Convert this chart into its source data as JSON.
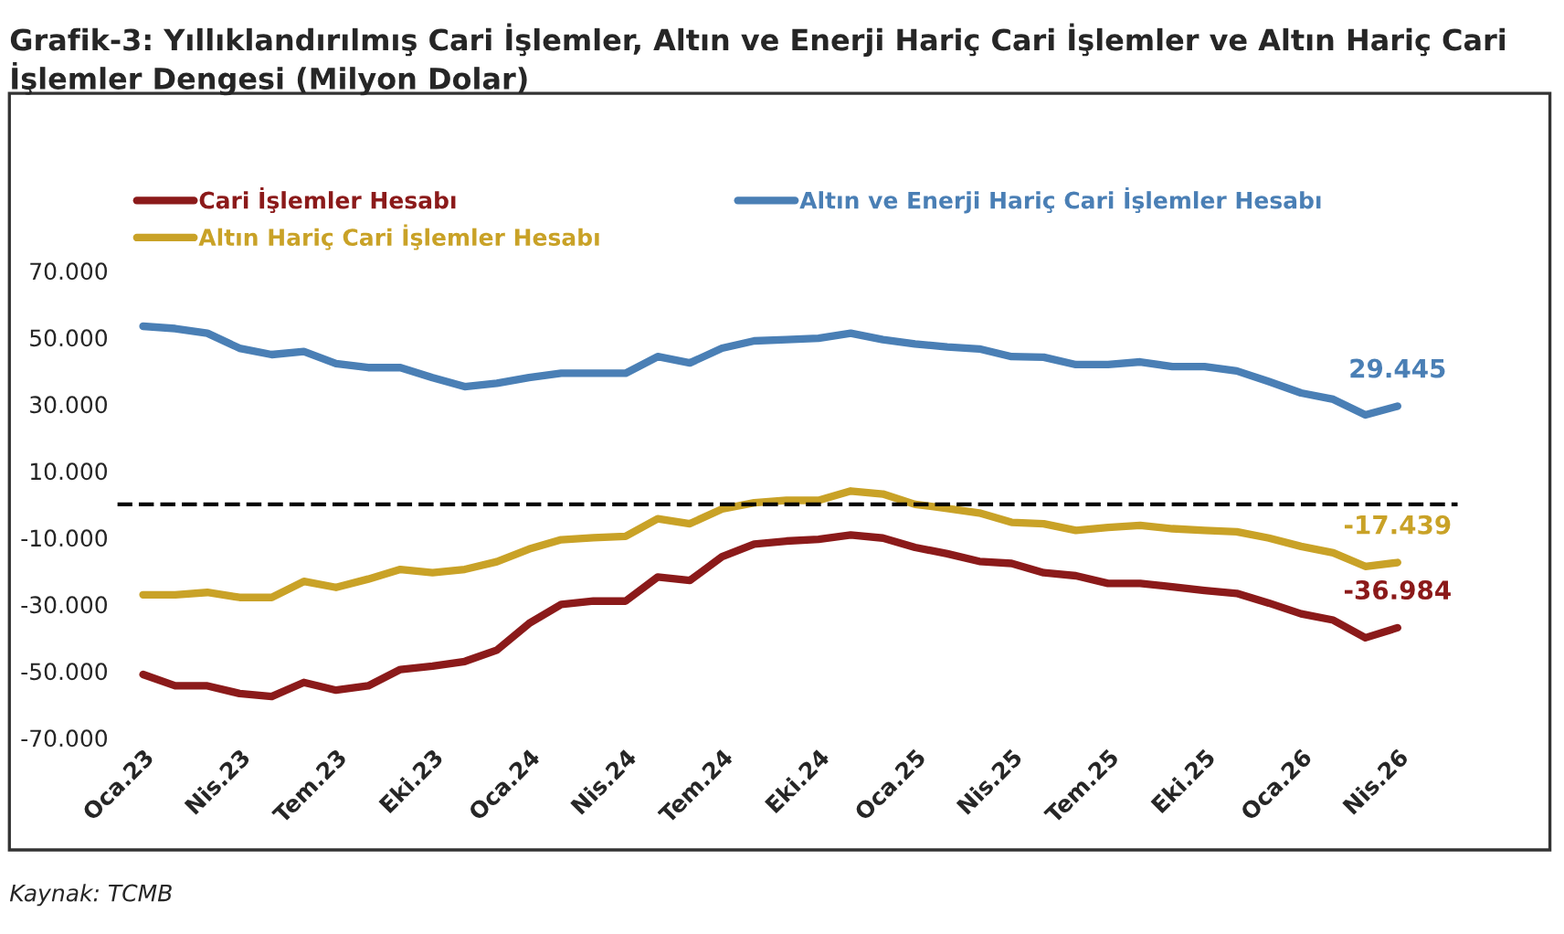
{
  "chart_data": {
    "type": "line",
    "title": "Grafik-3: Yıllıklandırılmış Cari İşlemler, Altın ve Enerji Hariç Cari İşlemler ve Altın Hariç Cari İşlemler Dengesi (Milyon Dolar)",
    "categories": [
      "Oca.23",
      null,
      null,
      "Nis.23",
      null,
      null,
      "Tem.23",
      null,
      null,
      "Eki.23",
      null,
      null,
      "Oca.24",
      null,
      null,
      "Nis.24",
      null,
      null,
      "Tem.24",
      null,
      null,
      "Eki.24",
      null,
      null,
      "Oca.25",
      null,
      null,
      "Nis.25",
      null,
      null,
      "Tem.25",
      null,
      null,
      "Eki.25",
      null,
      null,
      "Oca.26",
      null,
      null,
      "Nis.26"
    ],
    "series": [
      {
        "name": "Cari İşlemler Hesabı",
        "color": "#8b1a1a",
        "values": [
          -51000,
          -54400,
          -54400,
          -56700,
          -57600,
          -53400,
          -55700,
          -54400,
          -49500,
          -48500,
          -47100,
          -43700,
          -35700,
          -30000,
          -29000,
          -29000,
          -21800,
          -22800,
          -15700,
          -11900,
          -11000,
          -10500,
          -9200,
          -10100,
          -12900,
          -14800,
          -17100,
          -17700,
          -20500,
          -21400,
          -23700,
          -23700,
          -24700,
          -25800,
          -26700,
          -29600,
          -32800,
          -34700,
          -40000,
          -36984
        ],
        "value_labels": [
          null,
          null,
          null,
          null,
          null,
          null,
          null,
          null,
          null,
          null,
          null,
          null,
          null,
          null,
          null,
          null,
          null,
          null,
          null,
          null,
          null,
          null,
          null,
          null,
          null,
          null,
          null,
          null,
          null,
          null,
          null,
          null,
          null,
          null,
          null,
          null,
          null,
          null,
          null,
          "-36.984"
        ]
      },
      {
        "name": "Altın ve Enerji Hariç Cari İşlemler Hesabı",
        "color": "#4a7fb5",
        "values": [
          53400,
          52700,
          51300,
          46800,
          44900,
          45800,
          42200,
          41000,
          41000,
          38000,
          35300,
          36300,
          38000,
          39300,
          39300,
          39300,
          44300,
          42400,
          46800,
          49000,
          49400,
          49800,
          51300,
          49400,
          48100,
          47200,
          46600,
          44300,
          44100,
          41900,
          41900,
          42700,
          41300,
          41300,
          40000,
          36800,
          33400,
          31500,
          26800,
          29445
        ],
        "value_labels": [
          null,
          null,
          null,
          null,
          null,
          null,
          null,
          null,
          null,
          null,
          null,
          null,
          null,
          null,
          null,
          null,
          null,
          null,
          null,
          null,
          null,
          null,
          null,
          null,
          null,
          null,
          null,
          null,
          null,
          null,
          null,
          null,
          null,
          null,
          null,
          null,
          null,
          null,
          null,
          "29.445"
        ]
      },
      {
        "name": "Altın Hariç Cari İşlemler Hesabı",
        "color": "#c9a227",
        "values": [
          -27100,
          -27100,
          -26400,
          -27900,
          -27900,
          -23100,
          -24900,
          -22400,
          -19500,
          -20500,
          -19500,
          -17200,
          -13400,
          -10600,
          -10000,
          -9600,
          -4300,
          -5800,
          -1400,
          500,
          1200,
          1200,
          4000,
          3100,
          0,
          -1200,
          -2600,
          -5400,
          -5800,
          -7800,
          -6900,
          -6300,
          -7300,
          -7800,
          -8200,
          -10100,
          -12600,
          -14500,
          -18600,
          -17439
        ],
        "value_labels": [
          null,
          null,
          null,
          null,
          null,
          null,
          null,
          null,
          null,
          null,
          null,
          null,
          null,
          null,
          null,
          null,
          null,
          null,
          null,
          null,
          null,
          null,
          null,
          null,
          null,
          null,
          null,
          null,
          null,
          null,
          null,
          null,
          null,
          null,
          null,
          null,
          null,
          null,
          null,
          "-17.439"
        ]
      }
    ],
    "ylim": [
      -70000,
      70000
    ],
    "yticks": [
      {
        "value": -70000,
        "label": "-70.000"
      },
      {
        "value": -50000,
        "label": "-50.000"
      },
      {
        "value": -30000,
        "label": "-30.000"
      },
      {
        "value": -10000,
        "label": "-10.000"
      },
      {
        "value": 10000,
        "label": "10.000"
      },
      {
        "value": 30000,
        "label": "30.000"
      },
      {
        "value": 50000,
        "label": "50.000"
      },
      {
        "value": 70000,
        "label": "70.000"
      }
    ],
    "ref_lines": [
      {
        "axis": "y",
        "value": 0,
        "label": null,
        "color": "#000000",
        "line_style": "dashed"
      }
    ],
    "legend": "top",
    "grid": false,
    "marker": "none",
    "line_style": "solid",
    "annotations": [
      "Kaynak: TCMB"
    ]
  }
}
